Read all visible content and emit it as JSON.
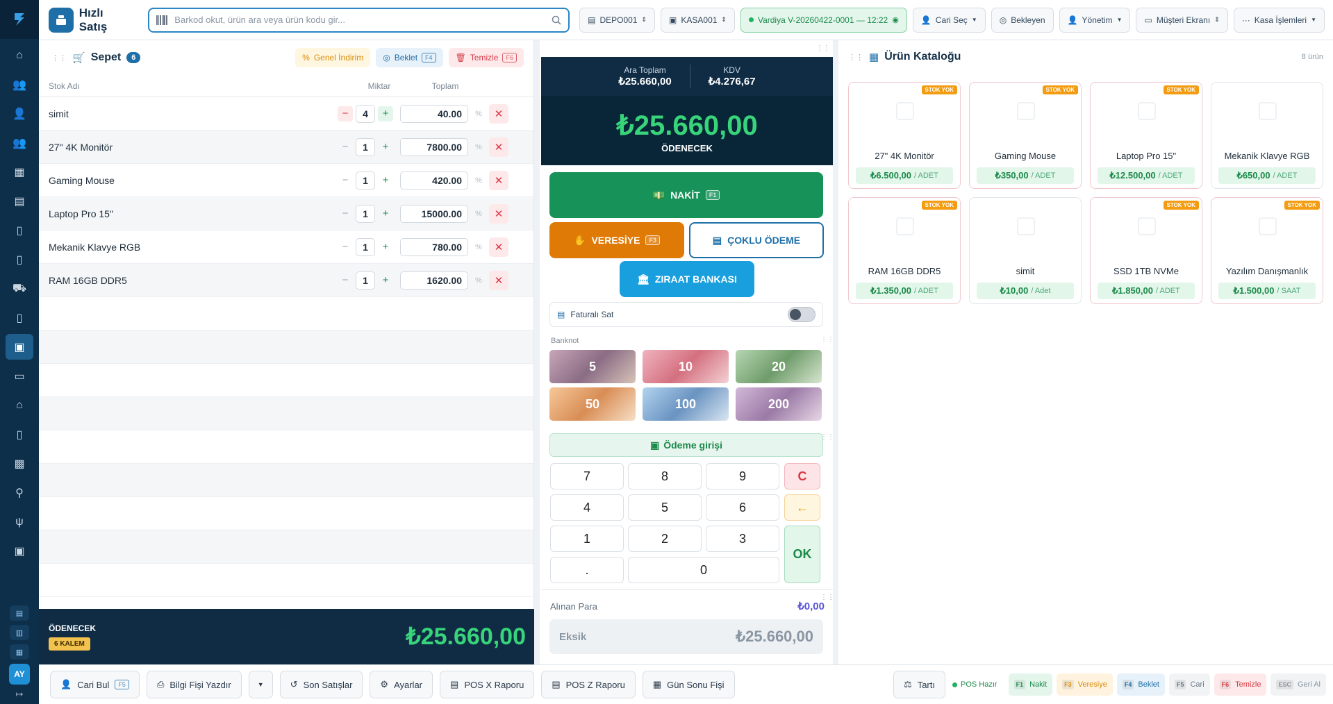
{
  "header": {
    "title": "Hızlı Satış",
    "search_placeholder": "Barkod okut, ürün ara veya ürün kodu gir...",
    "depot": "DEPO001",
    "register": "KASA001",
    "shift": "Vardiya V-20260422-0001 — 12:22",
    "customer_select": "Cari Seç",
    "pending": "Bekleyen",
    "management": "Yönetim",
    "customer_screen": "Müşteri Ekranı",
    "cash_ops": "Kasa İşlemleri"
  },
  "cart": {
    "title": "Sepet",
    "count": "6",
    "general_discount": "Genel İndirim",
    "hold": "Beklet",
    "hold_key": "F4",
    "clear": "Temizle",
    "clear_key": "F6",
    "columns": {
      "name": "Stok Adı",
      "qty": "Miktar",
      "total": "Toplam"
    },
    "items": [
      {
        "name": "simit",
        "qty": "4",
        "total": "40.00"
      },
      {
        "name": "27\" 4K Monitör",
        "qty": "1",
        "total": "7800.00"
      },
      {
        "name": "Gaming Mouse",
        "qty": "1",
        "total": "420.00"
      },
      {
        "name": "Laptop Pro 15\"",
        "qty": "1",
        "total": "15000.00"
      },
      {
        "name": "Mekanik Klavye RGB",
        "qty": "1",
        "total": "780.00"
      },
      {
        "name": "RAM 16GB DDR5",
        "qty": "1",
        "total": "1620.00"
      }
    ],
    "footer_label": "ÖDENECEK",
    "footer_items": "6 KALEM",
    "footer_total": "₺25.660,00"
  },
  "payment": {
    "subtotal_label": "Ara Toplam",
    "subtotal": "₺25.660,00",
    "tax_label": "KDV",
    "tax": "₺4.276,67",
    "total": "₺25.660,00",
    "total_label": "ÖDENECEK",
    "cash": "NAKİT",
    "cash_key": "F1",
    "credit": "VERESİYE",
    "credit_key": "F3",
    "multi": "ÇOKLU ÖDEME",
    "bank": "ZIRAAT BANKASI",
    "invoice_toggle": "Faturalı Sat",
    "banknote_label": "Banknot",
    "banknotes": [
      "5",
      "10",
      "20",
      "50",
      "100",
      "200"
    ],
    "input_label": "Ödeme girişi",
    "keys": {
      "k7": "7",
      "k8": "8",
      "k9": "9",
      "kc": "C",
      "k4": "4",
      "k5": "5",
      "k6": "6",
      "kback": "←",
      "k1": "1",
      "k2": "2",
      "k3": "3",
      "kok": "OK",
      "kdot": ".",
      "k0": "0"
    },
    "received_label": "Alınan Para",
    "received": "₺0,00",
    "missing_label": "Eksik",
    "missing": "₺25.660,00"
  },
  "catalog": {
    "title": "Ürün Kataloğu",
    "count": "8 ürün",
    "out_of_stock": "STOK YOK",
    "products": [
      {
        "name": "27\" 4K Monitör",
        "price": "₺6.500,00",
        "unit": "/ ADET"
      },
      {
        "name": "Gaming Mouse",
        "price": "₺350,00",
        "unit": "/ ADET"
      },
      {
        "name": "Laptop Pro 15\"",
        "price": "₺12.500,00",
        "unit": "/ ADET"
      },
      {
        "name": "Mekanik Klavye RGB",
        "price": "₺650,00",
        "unit": "/ ADET"
      },
      {
        "name": "RAM 16GB DDR5",
        "price": "₺1.350,00",
        "unit": "/ ADET"
      },
      {
        "name": "simit",
        "price": "₺10,00",
        "unit": "/ Adet"
      },
      {
        "name": "SSD 1TB NVMe",
        "price": "₺1.850,00",
        "unit": "/ ADET"
      },
      {
        "name": "Yazılım Danışmanlık",
        "price": "₺1.500,00",
        "unit": "/ SAAT"
      }
    ]
  },
  "bottom": {
    "find_customer": "Cari Bul",
    "find_customer_key": "F5",
    "print_receipt": "Bilgi Fişi Yazdır",
    "last_sales": "Son Satışlar",
    "settings": "Ayarlar",
    "x_report": "POS X Raporu",
    "z_report": "POS Z Raporu",
    "day_end": "Gün Sonu Fişi",
    "scale": "Tartı",
    "pos_status": "POS Hazır",
    "shortcuts": [
      {
        "key": "F1",
        "label": "Nakit"
      },
      {
        "key": "F3",
        "label": "Veresiye"
      },
      {
        "key": "F4",
        "label": "Beklet"
      },
      {
        "key": "F5",
        "label": "Cari"
      },
      {
        "key": "F6",
        "label": "Temizle"
      },
      {
        "key": "ESC",
        "label": "Geri Al"
      }
    ]
  },
  "user": {
    "initials": "AY"
  }
}
